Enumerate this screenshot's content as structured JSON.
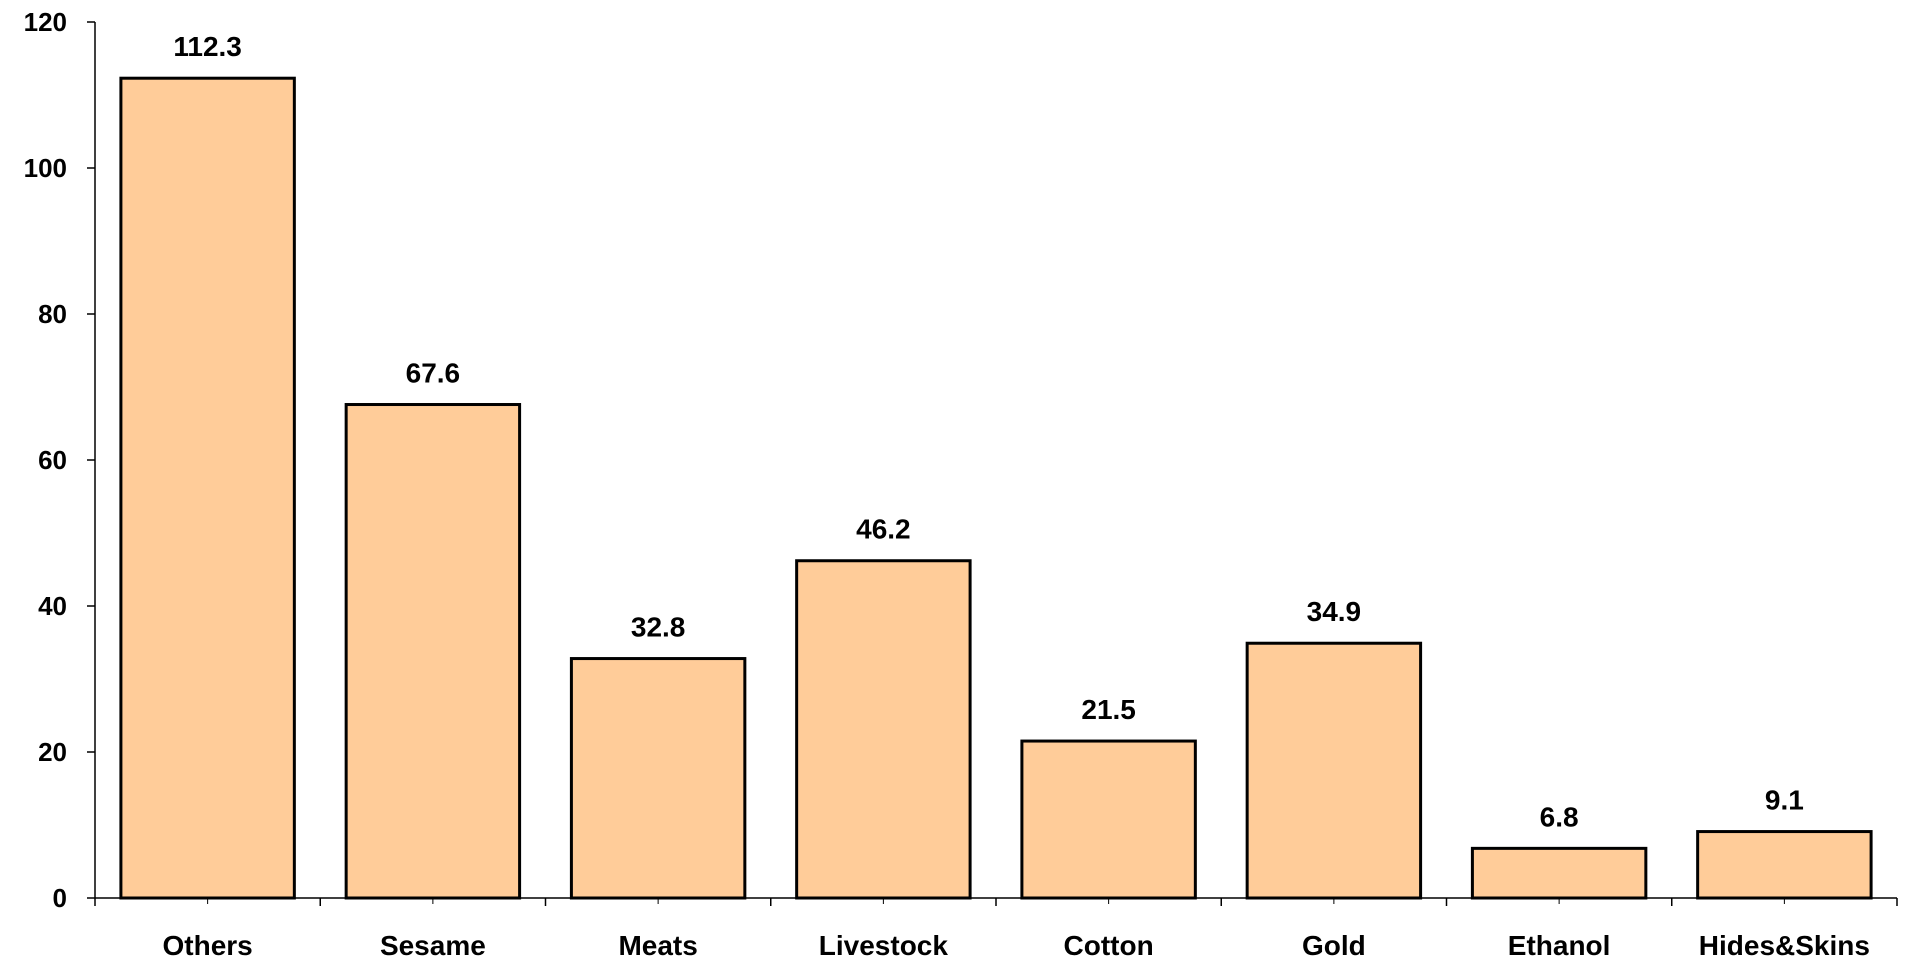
{
  "chart_data": {
    "type": "bar",
    "title": "",
    "xlabel": "",
    "ylabel": "",
    "categories": [
      "Others",
      "Sesame",
      "Meats",
      "Livestock",
      "Cotton",
      "Gold",
      "Ethanol",
      "Hides&Skins"
    ],
    "values": [
      112.3,
      67.6,
      32.8,
      46.2,
      21.5,
      34.9,
      6.8,
      9.1
    ],
    "data_labels": [
      "112.3",
      "67.6",
      "32.8",
      "46.2",
      "21.5",
      "34.9",
      "6.8",
      "9.1"
    ],
    "ylim": [
      0,
      120
    ],
    "yticks": [
      0,
      20,
      40,
      60,
      80,
      100,
      120
    ],
    "ytick_labels": [
      "0",
      "20",
      "40",
      "60",
      "80",
      "100",
      "120"
    ],
    "grid": false,
    "legend": "none",
    "bar_color": "#FFCC99",
    "bar_edge_color": "#000000"
  }
}
